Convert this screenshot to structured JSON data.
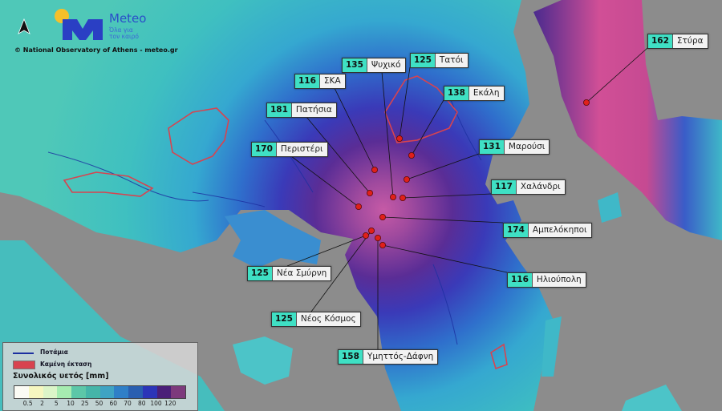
{
  "header": {
    "brand": "Meteo",
    "tagline_line1": "Όλα για",
    "tagline_line2": "τον καιρό",
    "copyright": "© National Observatory of Athens - meteo.gr",
    "north_arrow_icon": "north-arrow-icon",
    "logo_icon": "meteo-sun-m-logo"
  },
  "stations": [
    {
      "value": "162",
      "name": "Στύρα"
    },
    {
      "value": "135",
      "name": "Ψυχικό"
    },
    {
      "value": "125",
      "name": "Τατόι"
    },
    {
      "value": "116",
      "name": "ΣΚΑ"
    },
    {
      "value": "138",
      "name": "Εκάλη"
    },
    {
      "value": "181",
      "name": "Πατήσια"
    },
    {
      "value": "131",
      "name": "Μαρούσι"
    },
    {
      "value": "170",
      "name": "Περιστέρι"
    },
    {
      "value": "117",
      "name": "Χαλάνδρι"
    },
    {
      "value": "174",
      "name": "Αμπελόκηποι"
    },
    {
      "value": "125",
      "name": "Νέα Σμύρνη"
    },
    {
      "value": "116",
      "name": "Ηλιούπολη"
    },
    {
      "value": "125",
      "name": "Νέος Κόσμος"
    },
    {
      "value": "158",
      "name": "Υμηττός-Δάφνη"
    }
  ],
  "legend": {
    "rivers_label": "Ποτάμια",
    "burned_label": "Καμένη έκταση",
    "title": "Συνολικός υετός [mm]",
    "ticks": [
      "0.5",
      "2",
      "5",
      "10",
      "25",
      "50",
      "60",
      "70",
      "80",
      "100",
      "120"
    ],
    "colors": [
      "#fbfbf4",
      "#f6f7c0",
      "#dcf5c8",
      "#a6ecb0",
      "#5cc7a8",
      "#45b5a8",
      "#3fa3c3",
      "#2f7fc7",
      "#2a5fb0",
      "#2c35b8",
      "#4a1f78",
      "#7d3a7c"
    ],
    "river_color": "#1c2fa0",
    "burned_color": "#d8434f",
    "station_dot_color": "#e0201a"
  }
}
